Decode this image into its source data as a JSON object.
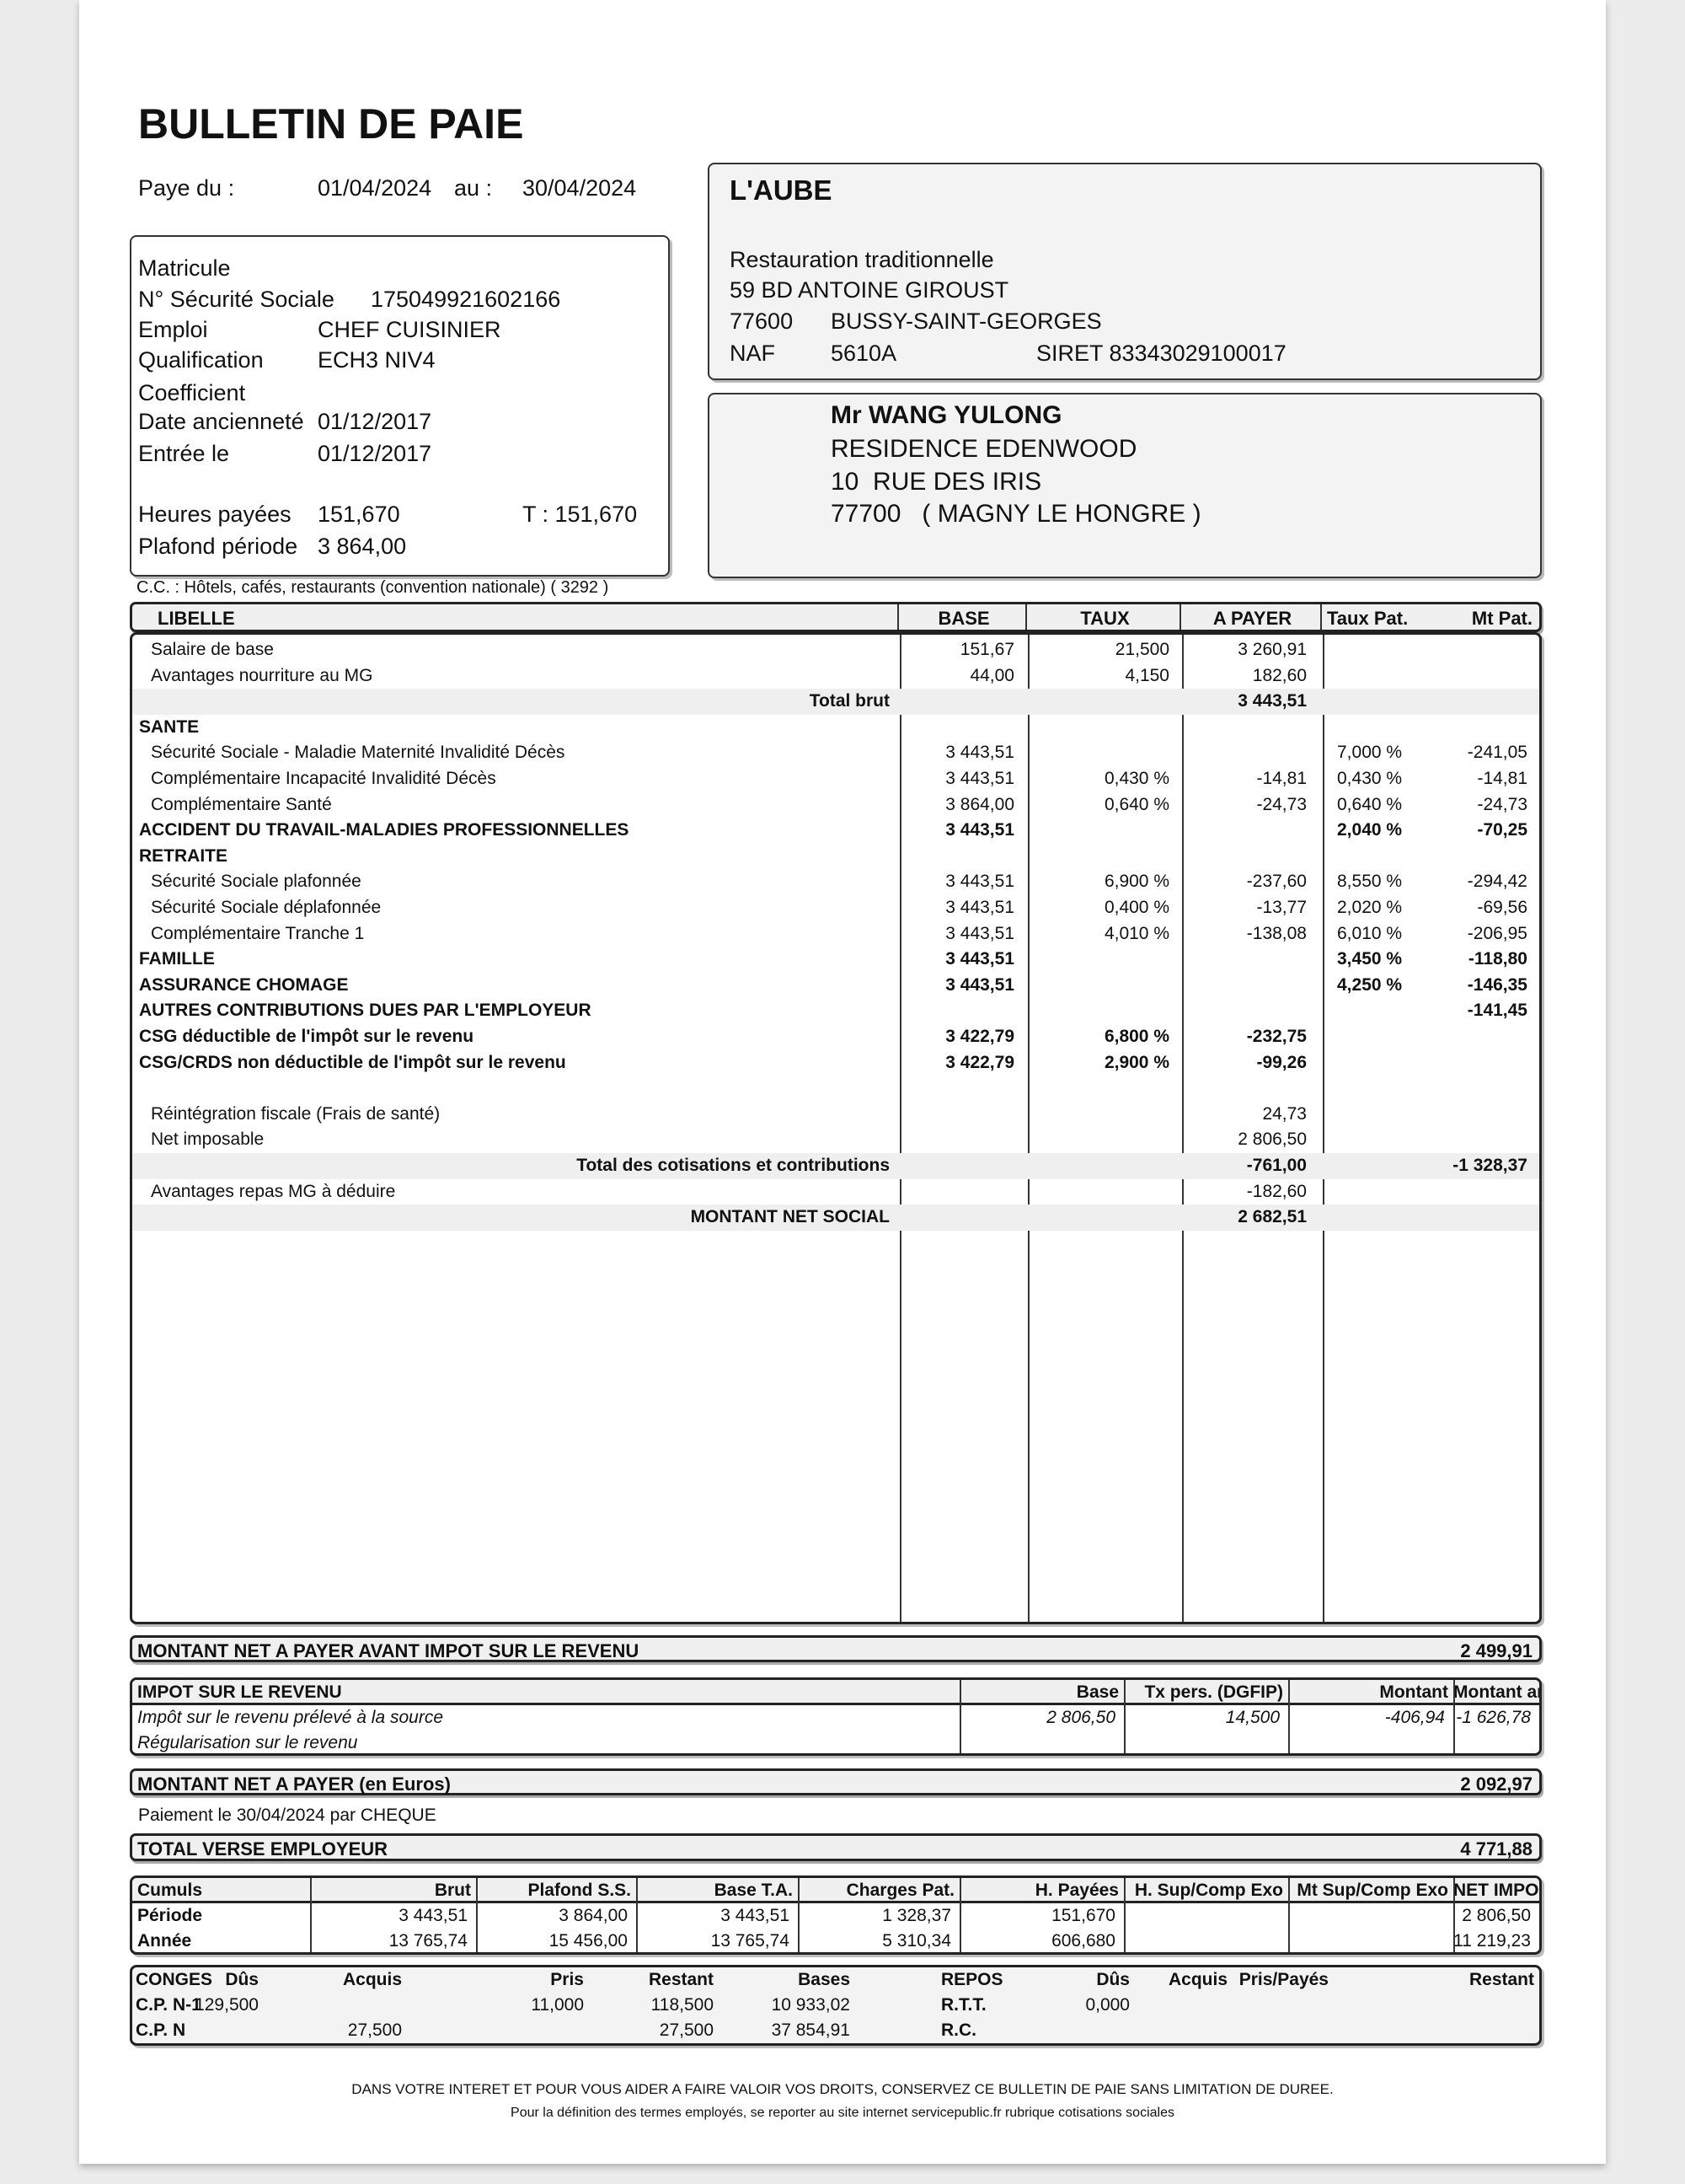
{
  "title": "BULLETIN DE PAIE",
  "period": {
    "label": "Paye du :",
    "from": "01/04/2024",
    "au": "au :",
    "to": "30/04/2024"
  },
  "employee_info": [
    {
      "label": "Matricule",
      "value": ""
    },
    {
      "label": "N° Sécurité Sociale",
      "value": "175049921602166"
    },
    {
      "label": "Emploi",
      "value": "CHEF CUISINIER"
    },
    {
      "label": "Qualification",
      "value": "ECH3 NIV4"
    },
    {
      "label": "Coefficient",
      "value": ""
    },
    {
      "label": "Date ancienneté",
      "value": "01/12/2017"
    },
    {
      "label": "Entrée le",
      "value": "01/12/2017"
    }
  ],
  "hours": {
    "label": "Heures payées",
    "value": "151,670",
    "total": "T : 151,670"
  },
  "plafond": {
    "label": "Plafond période",
    "value": "3 864,00"
  },
  "employer": {
    "name": "L'AUBE",
    "activity": "Restauration traditionnelle",
    "address": "59 BD ANTOINE GIROUST",
    "zip": "77600",
    "city": "BUSSY-SAINT-GEORGES",
    "naf_label": "NAF",
    "naf": "5610A",
    "siret": "SIRET 83343029100017"
  },
  "recipient": {
    "name": "Mr WANG YULONG",
    "line1": "RESIDENCE EDENWOOD",
    "line2": "10  RUE DES IRIS",
    "line3": "77700   ( MAGNY LE HONGRE )"
  },
  "convention": "C.C. : Hôtels, cafés, restaurants (convention nationale) ( 3292 )",
  "table": {
    "headers": [
      "LIBELLE",
      "BASE",
      "TAUX",
      "A PAYER",
      "Taux Pat.",
      "Mt Pat."
    ],
    "rows": [
      {
        "type": "item",
        "label": "Salaire de base",
        "base": "151,67",
        "taux": "21,500",
        "apayer": "3 260,91",
        "tpat": "",
        "mtpat": ""
      },
      {
        "type": "item",
        "label": "Avantages nourriture au MG",
        "base": "44,00",
        "taux": "4,150",
        "apayer": "182,60",
        "tpat": "",
        "mtpat": ""
      },
      {
        "type": "total",
        "label": "Total brut",
        "base": "",
        "taux": "",
        "apayer": "3 443,51",
        "tpat": "",
        "mtpat": ""
      },
      {
        "type": "section",
        "label": "SANTE",
        "base": "",
        "taux": "",
        "apayer": "",
        "tpat": "",
        "mtpat": ""
      },
      {
        "type": "item",
        "label": "Sécurité Sociale - Maladie Maternité Invalidité Décès",
        "base": "3 443,51",
        "taux": "",
        "apayer": "",
        "tpat": "7,000 %",
        "mtpat": "-241,05"
      },
      {
        "type": "item",
        "label": "Complémentaire Incapacité Invalidité Décès",
        "base": "3 443,51",
        "taux": "0,430 %",
        "apayer": "-14,81",
        "tpat": "0,430 %",
        "mtpat": "-14,81"
      },
      {
        "type": "item",
        "label": "Complémentaire Santé",
        "base": "3 864,00",
        "taux": "0,640 %",
        "apayer": "-24,73",
        "tpat": "0,640 %",
        "mtpat": "-24,73"
      },
      {
        "type": "section",
        "label": "ACCIDENT DU TRAVAIL-MALADIES PROFESSIONNELLES",
        "base": "3 443,51",
        "taux": "",
        "apayer": "",
        "tpat": "2,040 %",
        "mtpat": "-70,25"
      },
      {
        "type": "section",
        "label": "RETRAITE",
        "base": "",
        "taux": "",
        "apayer": "",
        "tpat": "",
        "mtpat": ""
      },
      {
        "type": "item",
        "label": "Sécurité Sociale plafonnée",
        "base": "3 443,51",
        "taux": "6,900 %",
        "apayer": "-237,60",
        "tpat": "8,550 %",
        "mtpat": "-294,42"
      },
      {
        "type": "item",
        "label": "Sécurité Sociale déplafonnée",
        "base": "3 443,51",
        "taux": "0,400 %",
        "apayer": "-13,77",
        "tpat": "2,020 %",
        "mtpat": "-69,56"
      },
      {
        "type": "item",
        "label": "Complémentaire Tranche 1",
        "base": "3 443,51",
        "taux": "4,010 %",
        "apayer": "-138,08",
        "tpat": "6,010 %",
        "mtpat": "-206,95"
      },
      {
        "type": "section",
        "label": "FAMILLE",
        "base": "3 443,51",
        "taux": "",
        "apayer": "",
        "tpat": "3,450 %",
        "mtpat": "-118,80"
      },
      {
        "type": "section",
        "label": "ASSURANCE CHOMAGE",
        "base": "3 443,51",
        "taux": "",
        "apayer": "",
        "tpat": "4,250 %",
        "mtpat": "-146,35"
      },
      {
        "type": "section",
        "label": "AUTRES CONTRIBUTIONS DUES PAR L'EMPLOYEUR",
        "base": "",
        "taux": "",
        "apayer": "",
        "tpat": "",
        "mtpat": "-141,45"
      },
      {
        "type": "section",
        "label": "CSG déductible de l'impôt sur le revenu",
        "base": "3 422,79",
        "taux": "6,800 %",
        "apayer": "-232,75",
        "tpat": "",
        "mtpat": ""
      },
      {
        "type": "section",
        "label": "CSG/CRDS non déductible de l'impôt sur le revenu",
        "base": "3 422,79",
        "taux": "2,900 %",
        "apayer": "-99,26",
        "tpat": "",
        "mtpat": ""
      },
      {
        "type": "blank",
        "label": "",
        "base": "",
        "taux": "",
        "apayer": "",
        "tpat": "",
        "mtpat": ""
      },
      {
        "type": "item",
        "label": "Réintégration fiscale (Frais de santé)",
        "base": "",
        "taux": "",
        "apayer": "24,73",
        "tpat": "",
        "mtpat": ""
      },
      {
        "type": "item",
        "label": "Net imposable",
        "base": "",
        "taux": "",
        "apayer": "2 806,50",
        "tpat": "",
        "mtpat": ""
      },
      {
        "type": "total",
        "label": "Total des cotisations et contributions",
        "base": "",
        "taux": "",
        "apayer": "-761,00",
        "tpat": "",
        "mtpat": "-1 328,37"
      },
      {
        "type": "item",
        "label": "Avantages repas  MG à déduire",
        "base": "",
        "taux": "",
        "apayer": "-182,60",
        "tpat": "",
        "mtpat": ""
      },
      {
        "type": "total",
        "label": "MONTANT NET SOCIAL",
        "base": "",
        "taux": "",
        "apayer": "2 682,51",
        "tpat": "",
        "mtpat": ""
      }
    ]
  },
  "net_avant_impot": {
    "label": "MONTANT NET A PAYER AVANT IMPOT SUR LE REVENU",
    "value": "2 499,91"
  },
  "impot": {
    "headers": [
      "IMPOT SUR LE REVENU",
      "Base",
      "Tx pers. (DGFIP)",
      "Montant",
      "Montant annuel"
    ],
    "rows": [
      [
        "Impôt sur le revenu prélevé à la source",
        "2 806,50",
        "14,500",
        "-406,94",
        "-1 626,78"
      ],
      [
        "Régularisation sur le revenu",
        "",
        "",
        "",
        ""
      ]
    ]
  },
  "net_a_payer": {
    "label": "MONTANT NET A PAYER (en Euros)",
    "value": "2 092,97"
  },
  "paiement": "Paiement le 30/04/2024 par CHEQUE",
  "total_verse": {
    "label": "TOTAL VERSE EMPLOYEUR",
    "value": "4 771,88"
  },
  "cumuls": {
    "headers": [
      "Cumuls",
      "Brut",
      "Plafond S.S.",
      "Base T.A.",
      "Charges Pat.",
      "H. Payées",
      "H. Sup/Comp Exo",
      "Mt Sup/Comp Exo",
      "NET IMPOSABLE"
    ],
    "rows": [
      [
        "Période",
        "3 443,51",
        "3 864,00",
        "3 443,51",
        "1 328,37",
        "151,670",
        "",
        "",
        "2 806,50"
      ],
      [
        "Année",
        "13 765,74",
        "15 456,00",
        "13 765,74",
        "5 310,34",
        "606,680",
        "",
        "",
        "11 219,23"
      ]
    ]
  },
  "conges": {
    "headers": [
      "CONGES",
      "Dûs",
      "Acquis",
      "Pris",
      "Restant",
      "Bases",
      "REPOS",
      "Dûs",
      "Acquis",
      "Pris/Payés",
      "Restant"
    ],
    "rows": [
      [
        "C.P. N-1",
        "129,500",
        "",
        "11,000",
        "118,500",
        "10 933,02",
        "R.T.T.",
        "0,000",
        "",
        "",
        ""
      ],
      [
        "C.P. N",
        "",
        "27,500",
        "",
        "27,500",
        "37 854,91",
        "R.C.",
        "",
        "",
        "",
        ""
      ]
    ]
  },
  "footer": [
    "DANS VOTRE INTERET ET POUR VOUS AIDER A FAIRE VALOIR VOS DROITS, CONSERVEZ CE BULLETIN DE PAIE SANS LIMITATION DE DUREE.",
    "Pour la définition des termes employés, se reporter au site internet servicepublic.fr rubrique cotisations sociales"
  ]
}
